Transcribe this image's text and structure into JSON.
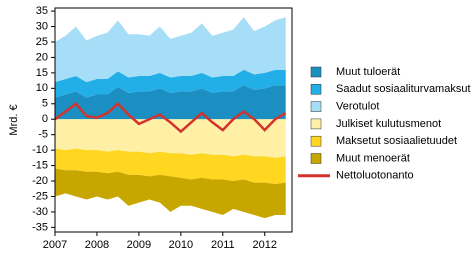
{
  "chart_data": {
    "type": "stacked-area",
    "y_label": "Mrd. €",
    "x": [
      2007,
      2007.25,
      2007.5,
      2007.75,
      2008,
      2008.25,
      2008.5,
      2008.75,
      2009,
      2009.25,
      2009.5,
      2009.75,
      2010,
      2010.25,
      2010.5,
      2010.75,
      2011,
      2011.25,
      2011.5,
      2011.75,
      2012,
      2012.25,
      2012.5
    ],
    "xlim": [
      2007,
      2012.65
    ],
    "xticks": [
      2007,
      2008,
      2009,
      2010,
      2011,
      2012
    ],
    "ylim": [
      -36.5,
      36
    ],
    "yticks": [
      -35,
      -30,
      -25,
      -20,
      -15,
      -10,
      -5,
      0,
      5,
      10,
      15,
      20,
      25,
      30,
      35
    ],
    "series": [
      {
        "name": "Muut tuloerät",
        "color": "#1b8ec2",
        "stack": "positive",
        "values": [
          7,
          8,
          9,
          7,
          8,
          8,
          10.5,
          8.5,
          9,
          9,
          10,
          8.5,
          9,
          9,
          10,
          8.5,
          9,
          9,
          11,
          9.5,
          10,
          11,
          11
        ]
      },
      {
        "name": "Saadut sosiaaliturvamaksut",
        "color": "#22aee6",
        "stack": "positive",
        "values": [
          5,
          5,
          5,
          5,
          5,
          5,
          5,
          5,
          5,
          5,
          5,
          5,
          5,
          5,
          5,
          5,
          5,
          5,
          5,
          5,
          5,
          5,
          5
        ]
      },
      {
        "name": "Verotulot",
        "color": "#a7def7",
        "stack": "positive",
        "values": [
          13,
          14,
          16,
          13.5,
          14,
          15,
          16.5,
          14,
          13.5,
          13,
          15,
          12.5,
          13,
          14,
          16,
          13.5,
          14,
          15,
          17,
          14,
          15,
          16,
          17
        ]
      },
      {
        "name": "Julkiset kulutusmenot",
        "color": "#fff0a6",
        "stack": "negative",
        "values": [
          -9.5,
          -10,
          -9.5,
          -10,
          -10,
          -10.5,
          -10,
          -10.5,
          -10.5,
          -11,
          -10.5,
          -11,
          -11,
          -11.5,
          -11,
          -11.5,
          -11.5,
          -12,
          -11.5,
          -12,
          -12,
          -12.5,
          -12
        ]
      },
      {
        "name": "Maksetut sosiaalietuudet",
        "color": "#ffd620",
        "stack": "negative",
        "values": [
          -6.5,
          -6.5,
          -7,
          -7,
          -7,
          -7,
          -7,
          -7.5,
          -7.5,
          -7.5,
          -7.5,
          -7.5,
          -8,
          -8,
          -8,
          -8,
          -8,
          -8,
          -8,
          -8.5,
          -8.5,
          -8.5,
          -8.5
        ]
      },
      {
        "name": "Muut menoerät",
        "color": "#c8a600",
        "stack": "negative",
        "values": [
          -9,
          -7.5,
          -8.5,
          -9,
          -8,
          -8.5,
          -8,
          -10,
          -9,
          -7.5,
          -9,
          -11.5,
          -9,
          -8.5,
          -10,
          -10.5,
          -11.5,
          -9,
          -10.5,
          -10.5,
          -11.5,
          -10,
          -10.5
        ]
      },
      {
        "name": "Nettoluotonanto",
        "color": "#d2342c",
        "type": "line",
        "values": [
          0,
          2.5,
          5,
          1,
          0.5,
          2,
          5,
          1.5,
          -1.5,
          0,
          1.5,
          -1,
          -4,
          -1,
          2,
          -1,
          -3.5,
          0,
          2.5,
          0,
          -3.5,
          0,
          2
        ]
      }
    ]
  }
}
